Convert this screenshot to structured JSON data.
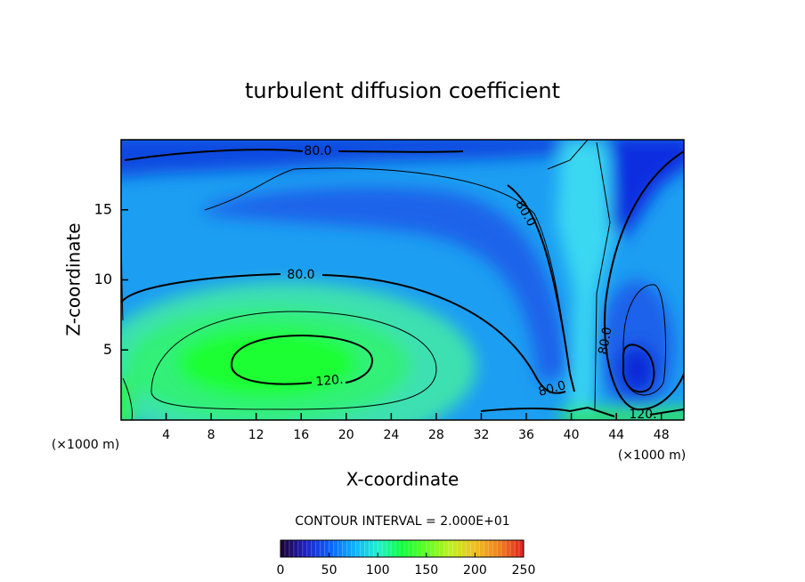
{
  "chart_data": {
    "type": "contour",
    "title": "turbulent diffusion coefficient",
    "x_label": "X-coordinate",
    "y_label": "Z-coordinate",
    "x_unit": "(×1000 m)",
    "y_unit": "(×1000 m)",
    "xlim": [
      0,
      50
    ],
    "ylim": [
      0,
      20
    ],
    "xticks": [
      4,
      8,
      12,
      16,
      20,
      24,
      28,
      32,
      36,
      40,
      44,
      48
    ],
    "yticks": [
      5,
      10,
      15
    ],
    "contour_interval_label": "CONTOUR INTERVAL = 2.000E+01",
    "contour_labels": [
      {
        "value": 80,
        "label": "80.0"
      },
      {
        "value": 80,
        "label": "80.0"
      },
      {
        "value": 80,
        "label": "80.0"
      },
      {
        "value": 80,
        "label": "80.0"
      },
      {
        "value": 80,
        "label": "80.0"
      },
      {
        "value": 120,
        "label": "120."
      },
      {
        "value": 120,
        "label": "120."
      }
    ],
    "colorbar": {
      "lim": [
        0,
        250
      ],
      "ticks": [
        0,
        50,
        100,
        150,
        200,
        250
      ],
      "colors": [
        "#1a0030",
        "#2020c0",
        "#0a60ff",
        "#10b0ff",
        "#20f0d0",
        "#10ff40",
        "#60ff20",
        "#c0f020",
        "#f0c020",
        "#f08020",
        "#e02020"
      ]
    }
  }
}
